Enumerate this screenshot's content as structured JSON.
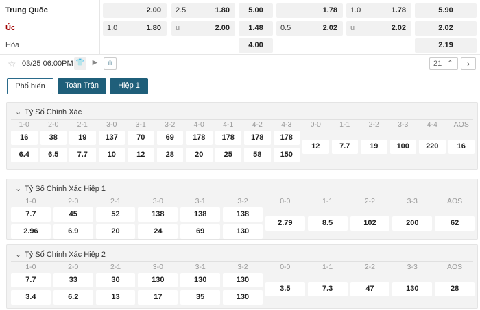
{
  "teams": {
    "home": "Trung Quốc",
    "away": "Úc",
    "draw": "Hòa",
    "home_color": "#222222",
    "away_color": "#a00000"
  },
  "odds": {
    "home": {
      "hcap_line": "",
      "hcap": "2.00",
      "ou_line": "2.5",
      "ou": "1.80",
      "x12": "5.00",
      "hcap1_line": "",
      "hcap1": "1.78",
      "ou1_line": "1.0",
      "ou1": "1.78",
      "x12_1": "5.90"
    },
    "away": {
      "hcap_line": "1.0",
      "hcap": "1.80",
      "ou_line": "u",
      "ou": "2.00",
      "x12": "1.48",
      "hcap1_line": "0.5",
      "hcap1": "2.02",
      "ou1_line": "u",
      "ou1": "2.02",
      "x12_1": "2.02"
    },
    "draw": {
      "x12": "4.00",
      "x12_1": "2.19"
    }
  },
  "toolbar": {
    "datetime": "03/25 06:00PM",
    "count": "21",
    "icons": [
      "star-icon",
      "jersey-icon",
      "play-icon",
      "stats-icon",
      "chevron-up-icon",
      "chevron-right-icon"
    ]
  },
  "tabs": [
    {
      "label": "Phổ biến",
      "active": true
    },
    {
      "label": "Toàn Trận"
    },
    {
      "label": "Hiệp 1"
    }
  ],
  "accent": "#1f5f7a",
  "sections": [
    {
      "title": "Tỷ Số Chính Xác",
      "columns": [
        {
          "label": "1-0",
          "values": [
            "16",
            "6.4"
          ]
        },
        {
          "label": "2-0",
          "values": [
            "38",
            "6.5"
          ]
        },
        {
          "label": "2-1",
          "values": [
            "19",
            "7.7"
          ]
        },
        {
          "label": "3-0",
          "values": [
            "137",
            "10"
          ]
        },
        {
          "label": "3-1",
          "values": [
            "70",
            "12"
          ]
        },
        {
          "label": "3-2",
          "values": [
            "69",
            "28"
          ]
        },
        {
          "label": "4-0",
          "values": [
            "178",
            "20"
          ]
        },
        {
          "label": "4-1",
          "values": [
            "178",
            "25"
          ]
        },
        {
          "label": "4-2",
          "values": [
            "178",
            "58"
          ]
        },
        {
          "label": "4-3",
          "values": [
            "178",
            "150"
          ]
        },
        {
          "label": "0-0",
          "values": [
            "12"
          ]
        },
        {
          "label": "1-1",
          "values": [
            "7.7"
          ]
        },
        {
          "label": "2-2",
          "values": [
            "19"
          ]
        },
        {
          "label": "3-3",
          "values": [
            "100"
          ]
        },
        {
          "label": "4-4",
          "values": [
            "220"
          ]
        },
        {
          "label": "AOS",
          "values": [
            "16"
          ]
        }
      ]
    },
    {
      "title": "Tỷ Số Chính Xác Hiệp 1",
      "columns": [
        {
          "label": "1-0",
          "values": [
            "7.7",
            "2.96"
          ]
        },
        {
          "label": "2-0",
          "values": [
            "45",
            "6.9"
          ]
        },
        {
          "label": "2-1",
          "values": [
            "52",
            "20"
          ]
        },
        {
          "label": "3-0",
          "values": [
            "138",
            "24"
          ]
        },
        {
          "label": "3-1",
          "values": [
            "138",
            "69"
          ]
        },
        {
          "label": "3-2",
          "values": [
            "138",
            "130"
          ]
        },
        {
          "label": "0-0",
          "values": [
            "2.79"
          ]
        },
        {
          "label": "1-1",
          "values": [
            "8.5"
          ]
        },
        {
          "label": "2-2",
          "values": [
            "102"
          ]
        },
        {
          "label": "3-3",
          "values": [
            "200"
          ]
        },
        {
          "label": "AOS",
          "values": [
            "62"
          ]
        }
      ]
    },
    {
      "title": "Tỷ Số Chính Xác Hiệp 2",
      "columns": [
        {
          "label": "1-0",
          "values": [
            "7.7",
            "3.4"
          ]
        },
        {
          "label": "2-0",
          "values": [
            "33",
            "6.2"
          ]
        },
        {
          "label": "2-1",
          "values": [
            "30",
            "13"
          ]
        },
        {
          "label": "3-0",
          "values": [
            "130",
            "17"
          ]
        },
        {
          "label": "3-1",
          "values": [
            "130",
            "35"
          ]
        },
        {
          "label": "3-2",
          "values": [
            "130",
            "130"
          ]
        },
        {
          "label": "0-0",
          "values": [
            "3.5"
          ]
        },
        {
          "label": "1-1",
          "values": [
            "7.3"
          ]
        },
        {
          "label": "2-2",
          "values": [
            "47"
          ]
        },
        {
          "label": "3-3",
          "values": [
            "130"
          ]
        },
        {
          "label": "AOS",
          "values": [
            "28"
          ]
        }
      ]
    }
  ]
}
